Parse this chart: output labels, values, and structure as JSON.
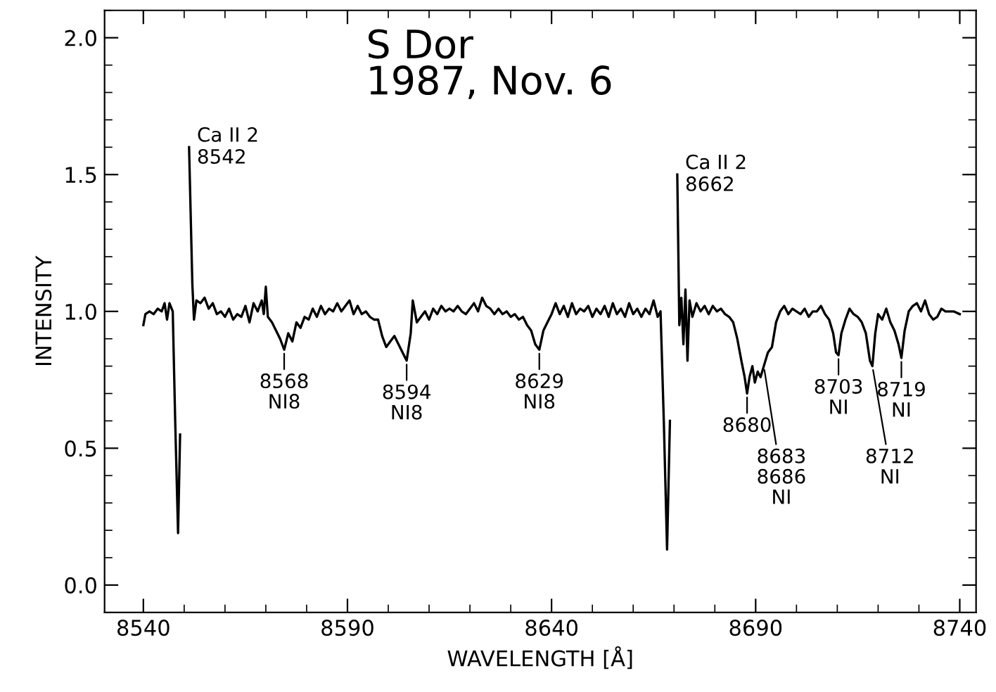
{
  "chart_data": {
    "type": "line",
    "title": "S Dor\n1987, Nov. 6",
    "xlabel": "WAVELENGTH [Å]",
    "ylabel": "INTENSITY",
    "xlim": [
      8530.5,
      8744
    ],
    "ylim": [
      -0.1,
      2.1
    ],
    "xticks": [
      8540,
      8590,
      8640,
      8690,
      8740
    ],
    "yticks": [
      {
        "value": 0,
        "label": "0.0"
      },
      {
        "value": 0.5,
        "label": "0.5"
      },
      {
        "value": 1,
        "label": "1.0"
      },
      {
        "value": 1.5,
        "label": "1.5"
      },
      {
        "value": 2,
        "label": "2.0"
      }
    ],
    "grid": false,
    "legend": false,
    "marker": "none",
    "line_style": "solid",
    "series": [
      {
        "color": "#000000",
        "x": [
          8540,
          8540.5,
          8541.5,
          8542.5,
          8543.5,
          8544.5,
          8545.2,
          8545.8,
          8546.4,
          8547.2,
          8547.8,
          8548.5,
          8549.0,
          8549.4,
          8550.3,
          8551.2,
          8552.0,
          8552.4,
          8553,
          8554,
          8555,
          8556,
          8557,
          8558,
          8559,
          8560,
          8561,
          8562,
          8563,
          8564,
          8565,
          8566,
          8567,
          8568,
          8569,
          8569.5,
          8570,
          8570.5,
          8571.5,
          8572.5,
          8573.5,
          8574.5,
          8575.5,
          8576.5,
          8577.5,
          8578.5,
          8579.5,
          8580.5,
          8581.5,
          8582.5,
          8583.5,
          8584.5,
          8585.5,
          8586.5,
          8587.5,
          8588.5,
          8589.5,
          8590.5,
          8591.5,
          8592.5,
          8593.5,
          8594.5,
          8595.5,
          8596.5,
          8597.5,
          8598.5,
          8599.5,
          8600.5,
          8601.5,
          8602.5,
          8603.5,
          8604.5,
          8605.5,
          8606,
          8607,
          8608,
          8609,
          8610,
          8611,
          8612,
          8613,
          8614,
          8615,
          8616,
          8617,
          8618,
          8619,
          8620,
          8621,
          8622,
          8623,
          8624,
          8625,
          8626,
          8627,
          8628,
          8629,
          8630,
          8631,
          8632,
          8633,
          8634,
          8635,
          8636,
          8637,
          8638,
          8639,
          8640,
          8641,
          8642,
          8643,
          8644,
          8645,
          8646,
          8647,
          8648,
          8649,
          8650,
          8651,
          8652,
          8653,
          8654,
          8655,
          8656,
          8657,
          8658,
          8659,
          8660,
          8661,
          8662,
          8663,
          8664,
          8665,
          8666,
          8666.7,
          8667.5,
          8668.3,
          8669.0,
          8669.4,
          8670.2,
          8670.8,
          8671.3,
          8671.8,
          8672.3,
          8672.8,
          8673.3,
          8673.8,
          8674.5,
          8675.5,
          8676.5,
          8677.5,
          8678.5,
          8679.5,
          8680.5,
          8681.5,
          8682.5,
          8683.5,
          8684.5,
          8685.5,
          8686.5,
          8687.3,
          8687.9,
          8688.5,
          8689.2,
          8689.8,
          8690.5,
          8691.2,
          8692.0,
          8693.0,
          8694.0,
          8695.0,
          8696.0,
          8697,
          8698,
          8699,
          8700,
          8701,
          8702,
          8703,
          8704,
          8705,
          8706,
          8707,
          8708,
          8709,
          8709.7,
          8710.3,
          8711,
          8712,
          8713,
          8714,
          8715,
          8716,
          8717,
          8718,
          8718.6,
          8719.3,
          8720,
          8721,
          8722,
          8723,
          8724,
          8725,
          8725.7,
          8726.5,
          8727.5,
          8728.5,
          8729.5,
          8730.5,
          8731.5,
          8732.5,
          8733.5,
          8734.5,
          8735.5,
          8736.5,
          8737.5,
          8738.5,
          8740
        ],
        "values": [
          0.95,
          0.99,
          1.0,
          0.99,
          1.01,
          1.0,
          1.03,
          0.97,
          1.03,
          1.0,
          0.6,
          0.19,
          0.55,
          null,
          null,
          1.6,
          1.1,
          0.97,
          1.04,
          1.03,
          1.05,
          1.01,
          1.03,
          0.99,
          1.0,
          0.98,
          1.01,
          0.97,
          0.99,
          0.98,
          1.02,
          0.96,
          1.03,
          1.0,
          1.04,
          0.99,
          1.09,
          0.98,
          0.96,
          0.93,
          0.9,
          0.86,
          0.92,
          0.89,
          0.96,
          0.94,
          0.98,
          0.97,
          1.01,
          0.98,
          1.02,
          0.99,
          1.01,
          1.0,
          1.03,
          1.0,
          1.02,
          1.04,
          0.99,
          1.02,
          0.99,
          1.0,
          0.98,
          0.97,
          0.97,
          0.91,
          0.87,
          0.89,
          0.91,
          0.88,
          0.85,
          0.82,
          0.92,
          1.04,
          0.96,
          0.98,
          1.0,
          0.97,
          1.01,
          0.99,
          1.02,
          1.0,
          1.01,
          1.0,
          1.02,
          1.0,
          0.99,
          1.01,
          1.03,
          1.0,
          1.05,
          1.02,
          1.01,
          0.99,
          1.01,
          0.99,
          1.0,
          0.98,
          0.99,
          0.97,
          0.98,
          0.95,
          0.93,
          0.88,
          0.86,
          0.93,
          0.96,
          0.99,
          1.03,
          0.99,
          1.02,
          0.98,
          1.03,
          0.99,
          1.01,
          1.0,
          1.02,
          0.98,
          1.01,
          0.99,
          1.02,
          0.98,
          1.03,
          0.99,
          1.01,
          0.98,
          1.03,
          0.99,
          1.01,
          0.98,
          1.01,
          0.99,
          1.04,
          0.98,
          1.0,
          0.6,
          0.13,
          0.6,
          null,
          null,
          1.5,
          0.95,
          1.05,
          0.88,
          1.08,
          0.82,
          1.04,
          0.98,
          1.03,
          1.0,
          1.02,
          0.99,
          1.02,
          1.0,
          1.01,
          0.99,
          0.98,
          0.96,
          0.9,
          0.82,
          0.76,
          0.7,
          0.76,
          0.8,
          0.74,
          0.78,
          0.76,
          0.8,
          0.85,
          0.87,
          0.96,
          1.0,
          1.02,
          0.99,
          1.01,
          1.0,
          0.99,
          1.01,
          0.98,
          1.0,
          1.0,
          1.02,
          0.99,
          0.97,
          0.92,
          0.85,
          0.84,
          0.92,
          0.97,
          1.01,
          0.99,
          0.98,
          0.96,
          0.92,
          0.82,
          0.8,
          0.92,
          0.99,
          0.97,
          1.01,
          0.96,
          0.93,
          0.88,
          0.83,
          0.93,
          1.0,
          1.02,
          1.03,
          1.0,
          1.04,
          0.99,
          0.97,
          0.98,
          1.01,
          1.0,
          1.0,
          1.0,
          0.99
        ]
      }
    ],
    "annotations": [
      {
        "text": "Ca II 2\n8542",
        "x": 8551.2,
        "y": 1.6
      },
      {
        "text": "Ca II 2\n8662",
        "x": 8670.8,
        "y": 1.5
      },
      {
        "text": "8568\nNI8",
        "x": 8574.5,
        "y": 0.86
      },
      {
        "text": "8594\nNI8",
        "x": 8604.5,
        "y": 0.82
      },
      {
        "text": "8629\nNI8",
        "x": 8637,
        "y": 0.86
      },
      {
        "text": "8680",
        "x": 8687.9,
        "y": 0.7
      },
      {
        "text": "8683\n8686\nNI",
        "x": 8692,
        "y": 0.8
      },
      {
        "text": "8703\nNI",
        "x": 8710.3,
        "y": 0.84
      },
      {
        "text": "8712\nNI",
        "x": 8718.6,
        "y": 0.8
      },
      {
        "text": "8719\nNI",
        "x": 8725.7,
        "y": 0.83
      }
    ]
  }
}
